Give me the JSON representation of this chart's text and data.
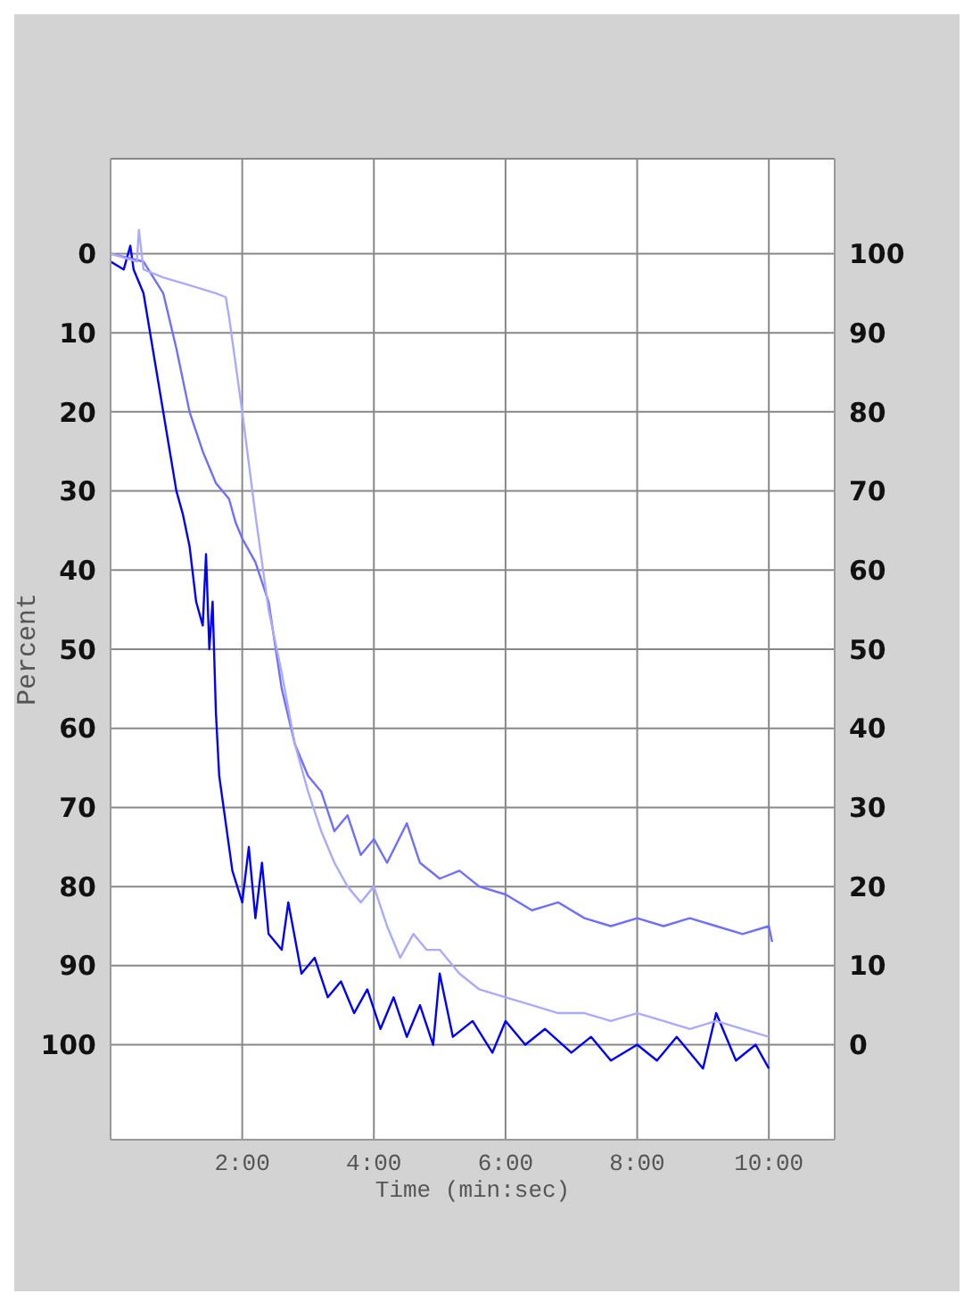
{
  "chart_data": {
    "type": "line",
    "xlabel": "Time (min:sec)",
    "ylabel": "Percent",
    "xlim": [
      0,
      11
    ],
    "xticks": [
      {
        "value": 2,
        "label": "2:00"
      },
      {
        "value": 4,
        "label": "4:00"
      },
      {
        "value": 6,
        "label": "6:00"
      },
      {
        "value": 8,
        "label": "8:00"
      },
      {
        "value": 10,
        "label": "10:00"
      }
    ],
    "ylim": [
      112,
      -12
    ],
    "yticks": [
      0,
      10,
      20,
      30,
      40,
      50,
      60,
      70,
      80,
      90,
      100
    ],
    "y2lim": [
      -12,
      112
    ],
    "y2ticks": [
      0,
      10,
      20,
      30,
      40,
      50,
      60,
      70,
      80,
      90,
      100
    ],
    "grid": true,
    "marker": "none",
    "line_style": "solid",
    "series": [
      {
        "color": "#0000ff",
        "x": [
          0,
          0.2,
          0.3,
          0.35,
          0.5,
          0.7,
          0.9,
          1.0,
          1.1,
          1.2,
          1.3,
          1.4,
          1.45,
          1.5,
          1.55,
          1.6,
          1.65,
          1.75,
          1.85,
          2.0,
          2.1,
          2.2,
          2.3,
          2.4,
          2.6,
          2.7,
          2.9,
          3.1,
          3.3,
          3.5,
          3.7,
          3.9,
          4.1,
          4.3,
          4.5,
          4.7,
          4.9,
          5.0,
          5.2,
          5.5,
          5.8,
          6.0,
          6.3,
          6.6,
          7.0,
          7.3,
          7.6,
          8.0,
          8.3,
          8.6,
          9.0,
          9.2,
          9.5,
          9.8,
          10.0
        ],
        "values": [
          1,
          2,
          -1,
          2,
          5,
          15,
          25,
          30,
          33,
          37,
          44,
          47,
          38,
          50,
          44,
          58,
          66,
          72,
          78,
          82,
          75,
          84,
          77,
          86,
          88,
          82,
          91,
          89,
          94,
          92,
          96,
          93,
          98,
          94,
          99,
          95,
          100,
          91,
          99,
          97,
          101,
          97,
          100,
          98,
          101,
          99,
          102,
          100,
          102,
          99,
          103,
          96,
          102,
          100,
          103
        ]
      },
      {
        "color": "#6f6fff",
        "x": [
          0,
          0.5,
          0.8,
          1.0,
          1.2,
          1.4,
          1.6,
          1.8,
          1.9,
          2.0,
          2.2,
          2.4,
          2.6,
          2.8,
          3.0,
          3.2,
          3.4,
          3.6,
          3.8,
          4.0,
          4.2,
          4.5,
          4.7,
          5.0,
          5.3,
          5.6,
          6.0,
          6.4,
          6.8,
          7.2,
          7.6,
          8.0,
          8.4,
          8.8,
          9.2,
          9.6,
          10.0,
          10.05
        ],
        "values": [
          0,
          1,
          5,
          12,
          20,
          25,
          29,
          31,
          34,
          36,
          39,
          44,
          55,
          62,
          66,
          68,
          73,
          71,
          76,
          74,
          77,
          72,
          77,
          79,
          78,
          80,
          81,
          83,
          82,
          84,
          85,
          84,
          85,
          84,
          85,
          86,
          85,
          87
        ]
      },
      {
        "color": "#aaaaff",
        "x": [
          0,
          0.4,
          0.43,
          0.5,
          0.8,
          1.2,
          1.6,
          1.75,
          1.8,
          2.0,
          2.2,
          2.4,
          2.6,
          2.8,
          3.0,
          3.2,
          3.4,
          3.6,
          3.8,
          4.0,
          4.2,
          4.4,
          4.6,
          4.8,
          5.0,
          5.3,
          5.6,
          6.0,
          6.4,
          6.8,
          7.2,
          7.6,
          8.0,
          8.4,
          8.8,
          9.2,
          9.6,
          10.0
        ],
        "values": [
          0,
          1,
          -3,
          2,
          3,
          4,
          5,
          5.5,
          8,
          20,
          33,
          45,
          53,
          62,
          68,
          73,
          77,
          80,
          82,
          80,
          85,
          89,
          86,
          88,
          88,
          91,
          93,
          94,
          95,
          96,
          96,
          97,
          96,
          97,
          98,
          97,
          98,
          99
        ]
      }
    ]
  }
}
